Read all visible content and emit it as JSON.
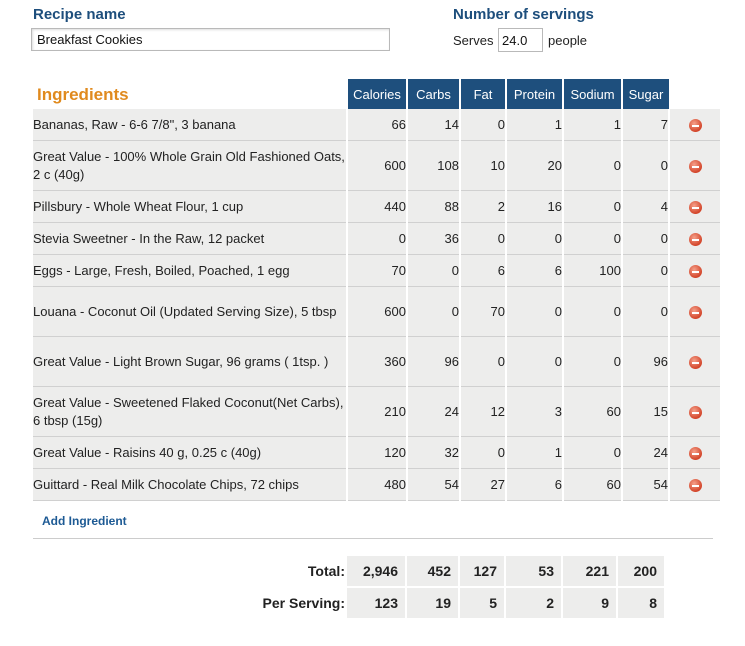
{
  "recipe": {
    "label": "Recipe name",
    "value": "Breakfast Cookies"
  },
  "servings": {
    "label": "Number of servings",
    "prefix": "Serves",
    "value": "24.0",
    "suffix": "people"
  },
  "ingredients": {
    "title": "Ingredients",
    "columns": [
      "Calories",
      "Carbs",
      "Fat",
      "Protein",
      "Sodium",
      "Sugar"
    ],
    "rows": [
      {
        "name": "Bananas, Raw - 6-6 7/8\", 3 banana",
        "values": [
          "66",
          "14",
          "0",
          "1",
          "1",
          "7"
        ]
      },
      {
        "name": "Great Value - 100% Whole Grain Old Fashioned Oats, 2 c (40g)",
        "values": [
          "600",
          "108",
          "10",
          "20",
          "0",
          "0"
        ]
      },
      {
        "name": "Pillsbury - Whole Wheat Flour, 1 cup",
        "values": [
          "440",
          "88",
          "2",
          "16",
          "0",
          "4"
        ]
      },
      {
        "name": "Stevia Sweetner - In the Raw, 12 packet",
        "values": [
          "0",
          "36",
          "0",
          "0",
          "0",
          "0"
        ]
      },
      {
        "name": "Eggs - Large, Fresh, Boiled, Poached, 1 egg",
        "values": [
          "70",
          "0",
          "6",
          "6",
          "100",
          "0"
        ]
      },
      {
        "name": "Louana - Coconut Oil (Updated Serving Size), 5 tbsp",
        "values": [
          "600",
          "0",
          "70",
          "0",
          "0",
          "0"
        ]
      },
      {
        "name": "Great Value - Light Brown Sugar, 96 grams ( 1tsp. )",
        "values": [
          "360",
          "96",
          "0",
          "0",
          "0",
          "96"
        ]
      },
      {
        "name": "Great Value - Sweetened Flaked Coconut(Net Carbs), 6 tbsp (15g)",
        "values": [
          "210",
          "24",
          "12",
          "3",
          "60",
          "15"
        ]
      },
      {
        "name": "Great Value - Raisins 40 g, 0.25 c (40g)",
        "values": [
          "120",
          "32",
          "0",
          "1",
          "0",
          "24"
        ]
      },
      {
        "name": "Guittard - Real Milk Chocolate Chips, 72 chips",
        "values": [
          "480",
          "54",
          "27",
          "6",
          "60",
          "54"
        ]
      }
    ],
    "add_label": "Add Ingredient"
  },
  "totals": {
    "total_label": "Total:",
    "total_values": [
      "2,946",
      "452",
      "127",
      "53",
      "221",
      "200"
    ],
    "per_label": "Per Serving:",
    "per_values": [
      "123",
      "19",
      "5",
      "2",
      "9",
      "8"
    ]
  },
  "icons": {
    "remove": "remove-circle-icon"
  },
  "colors": {
    "header_bg": "#1e4f7d",
    "title_orange": "#e08a1e",
    "label_blue": "#1d4e7c",
    "row_bg": "#ededec",
    "remove_red": "#d3452a"
  }
}
